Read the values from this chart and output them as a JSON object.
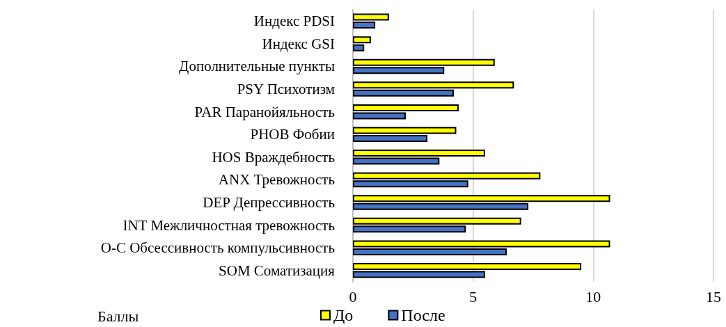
{
  "chart_data": {
    "type": "bar",
    "orientation": "horizontal",
    "xlabel": "Баллы",
    "categories": [
      "Индекс PDSI",
      "Индекс GSI",
      "Дополнительные пункты",
      "PSY Психотизм",
      "PAR Паранойяльность",
      "PHOB Фобии",
      "HOS Враждебность",
      "ANX Тревожность",
      "DEP Депрессивность",
      "INT Межличностная тревожность",
      "О-С Обсессивность компульсивность",
      "SOM Соматизация"
    ],
    "series": [
      {
        "name": "До",
        "color": "#ffff00",
        "values": [
          1.5,
          0.75,
          5.9,
          6.7,
          4.4,
          4.3,
          5.5,
          7.8,
          10.7,
          7.0,
          10.7,
          9.5
        ]
      },
      {
        "name": "После",
        "color": "#4472c4",
        "values": [
          0.93,
          0.47,
          3.8,
          4.2,
          2.2,
          3.1,
          3.6,
          4.8,
          7.3,
          4.7,
          6.4,
          5.5
        ]
      }
    ],
    "xlim": [
      0,
      15
    ],
    "xticks": [
      0,
      5,
      10,
      15
    ],
    "grid": "x",
    "legend": "bottom"
  }
}
